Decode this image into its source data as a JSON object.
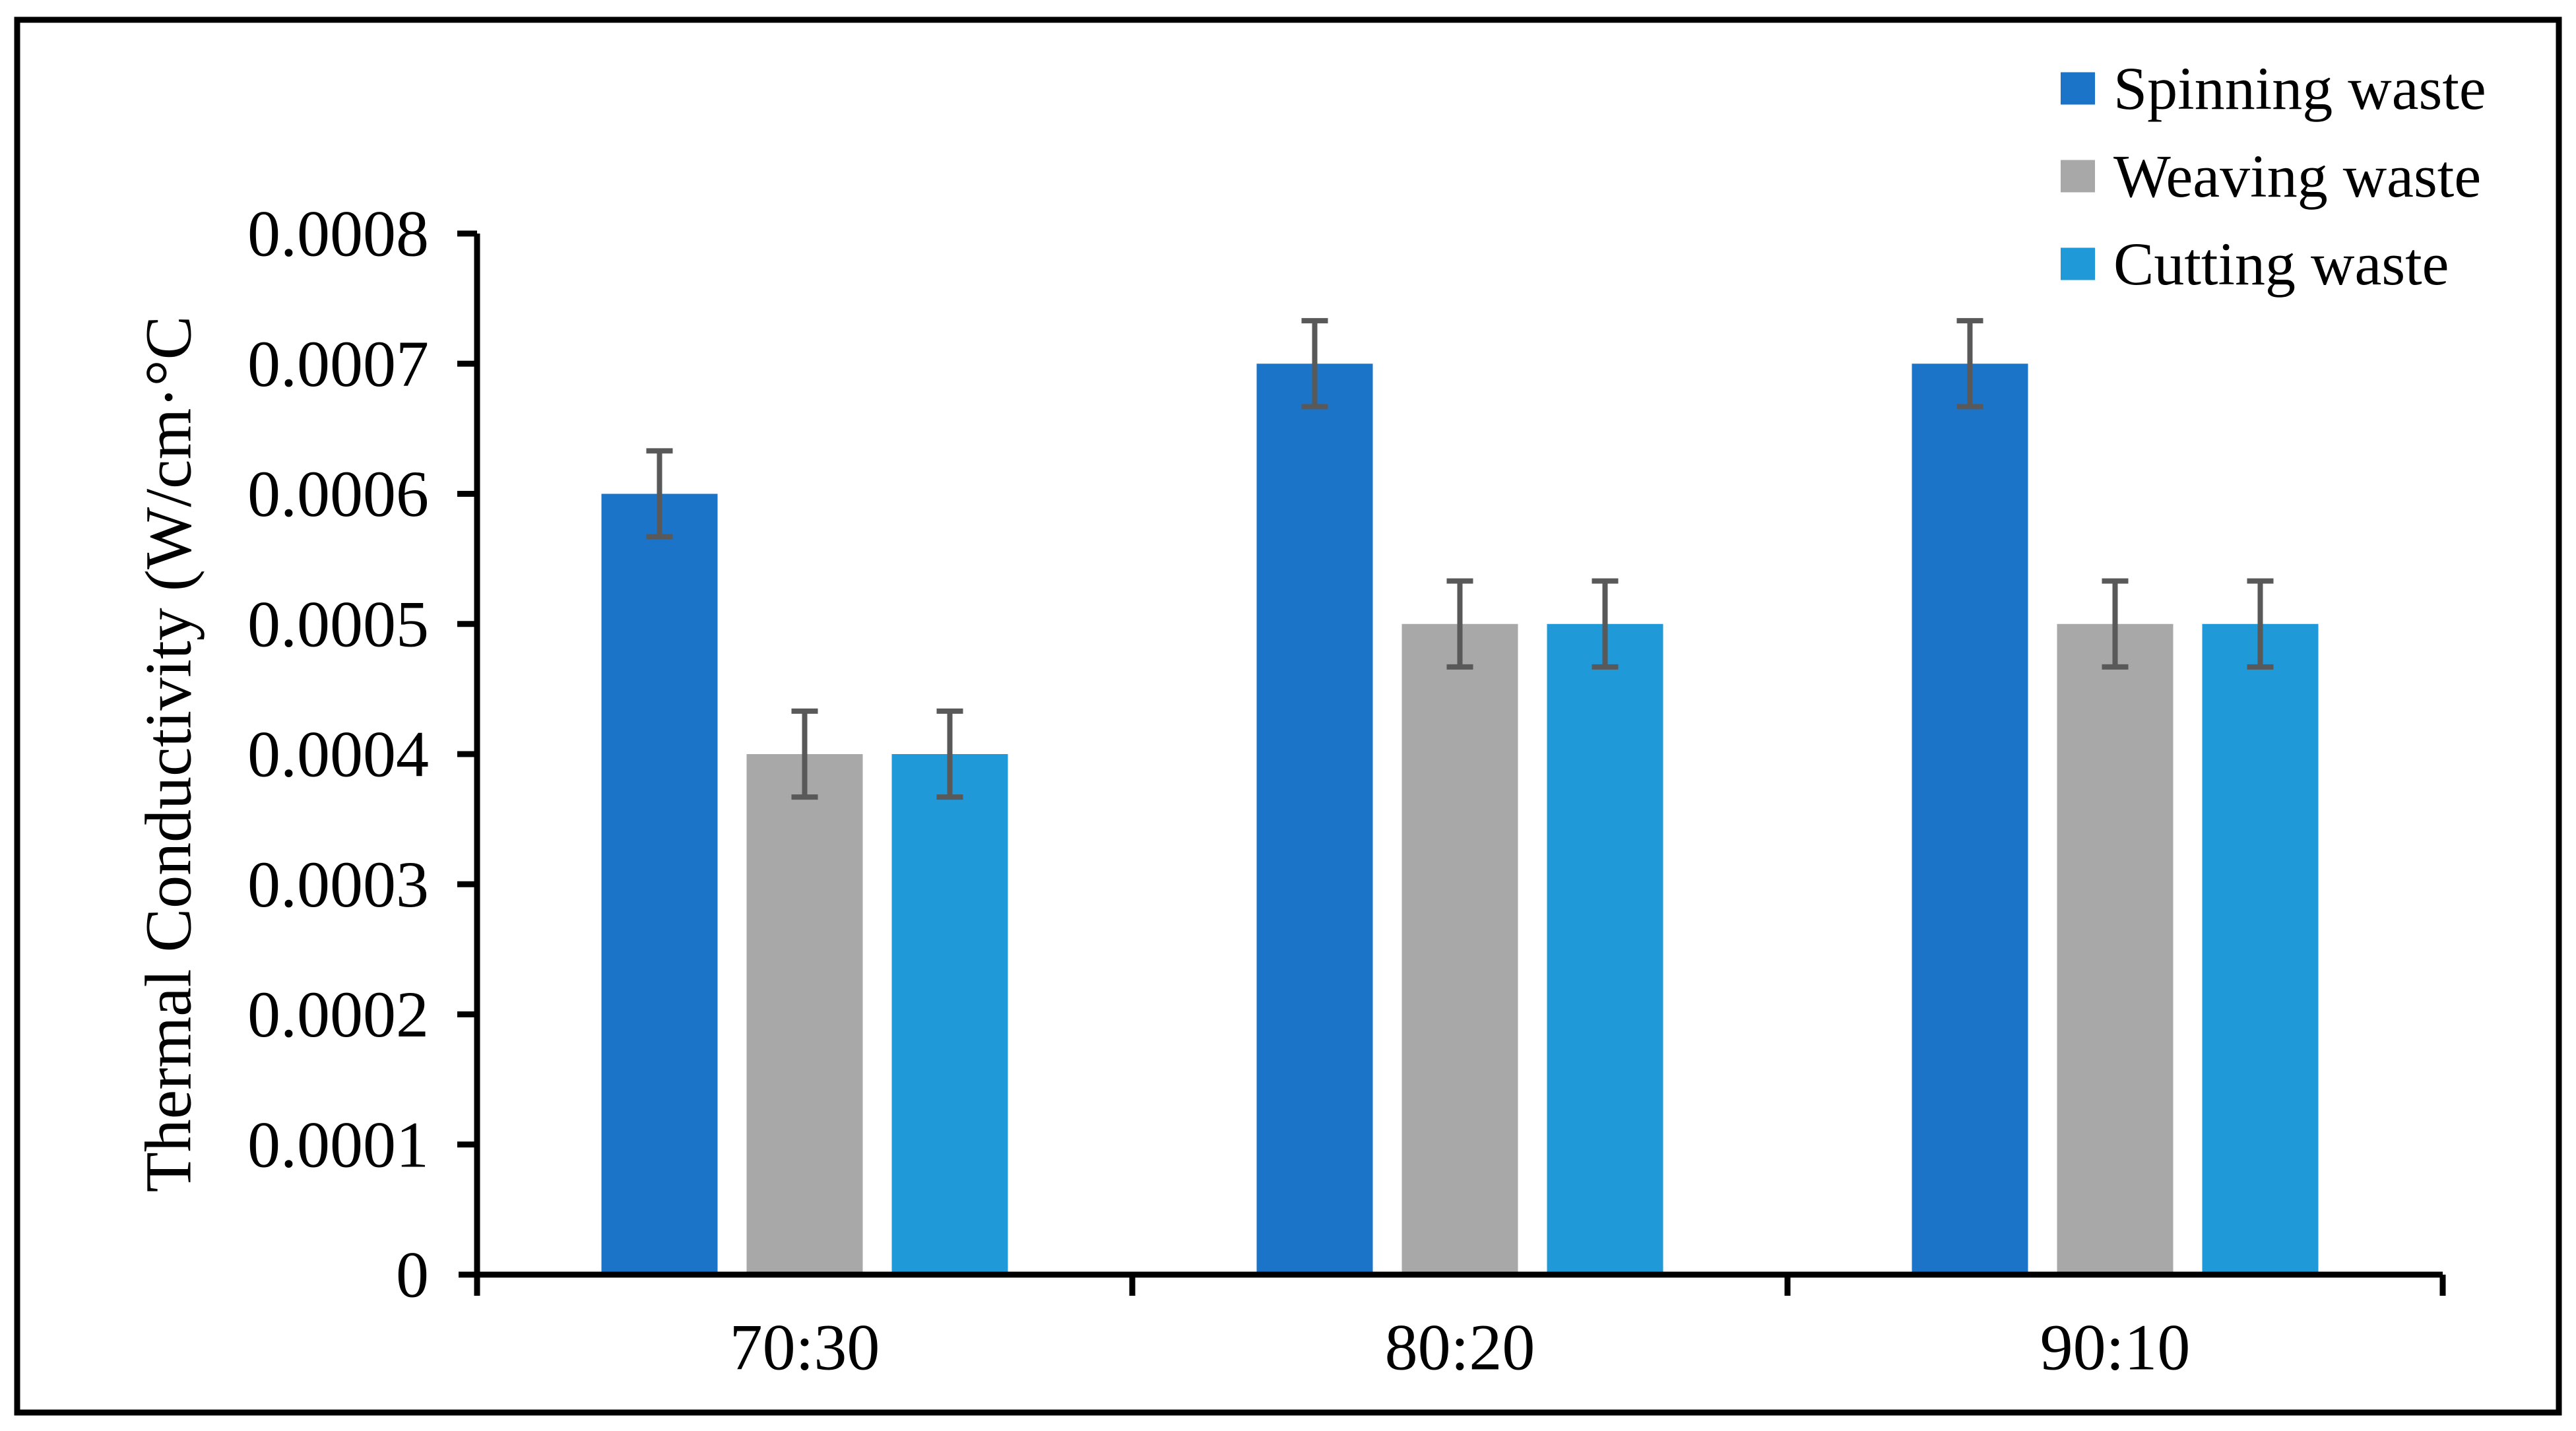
{
  "chart_data": {
    "type": "bar",
    "title": "",
    "categories": [
      "70:30",
      "80:20",
      "90:10"
    ],
    "series": [
      {
        "name": "Spinning waste",
        "color": "#1B74C8",
        "values": [
          0.0006,
          0.0007,
          0.0007
        ],
        "errors": [
          3.3e-05,
          3.3e-05,
          3.3e-05
        ]
      },
      {
        "name": "Weaving waste",
        "color": "#A8A8A8",
        "values": [
          0.0004,
          0.0005,
          0.0005
        ],
        "errors": [
          3.3e-05,
          3.3e-05,
          3.3e-05
        ]
      },
      {
        "name": "Cutting waste",
        "color": "#2099D8",
        "values": [
          0.0004,
          0.0005,
          0.0005
        ],
        "errors": [
          3.3e-05,
          3.3e-05,
          3.3e-05
        ]
      }
    ],
    "xlabel": "",
    "ylabel": "Thermal Conductivity (W/cm·°C",
    "ylim": [
      0,
      0.0008
    ],
    "y_ticks": [
      0,
      0.0001,
      0.0002,
      0.0003,
      0.0004,
      0.0005,
      0.0006,
      0.0007,
      0.0008
    ],
    "y_tick_labels": [
      "0",
      "0.0001",
      "0.0002",
      "0.0003",
      "0.0004",
      "0.0005",
      "0.0006",
      "0.0007",
      "0.0008"
    ],
    "grid": false,
    "legend_position": "top-right",
    "error_bar_color": "#595959",
    "axis_color": "#000000",
    "text_color": "#000000",
    "background": "#FFFFFF",
    "frame_border_color": "#000000"
  }
}
